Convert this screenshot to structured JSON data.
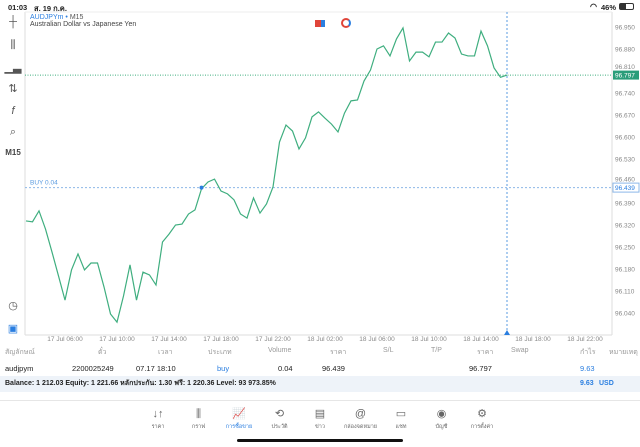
{
  "status_bar": {
    "time": "01:03",
    "date": "ส. 19 ก.ค.",
    "battery": "46%"
  },
  "chart": {
    "symbol": "AUDJPYm",
    "separator": "•",
    "timeframe": "M15",
    "description": "Australian Dollar vs Japanese Yen",
    "timeframe_label": "M15",
    "buy_label": "BUY 0.04",
    "current_price": "96.797",
    "buy_price": "96.439",
    "line_color": "#3fae7f",
    "accent": "#2a7ee0"
  },
  "chart_data": {
    "type": "line",
    "ylim": [
      96.0,
      96.99
    ],
    "y_ticks": [
      "96.950",
      "96.880",
      "96.810",
      "96.740",
      "96.670",
      "96.600",
      "96.530",
      "96.460",
      "96.390",
      "96.320",
      "96.250",
      "96.180",
      "96.110",
      "96.040"
    ],
    "x_ticks": [
      "17 Jul 06:00",
      "17 Jul 10:00",
      "17 Jul 14:00",
      "17 Jul 18:00",
      "17 Jul 22:00",
      "18 Jul 02:00",
      "18 Jul 06:00",
      "18 Jul 10:00",
      "18 Jul 14:00",
      "18 Jul 18:00",
      "18 Jul 22:00"
    ],
    "start": "17 Jul 03:00",
    "interval_minutes": 30,
    "values": [
      96.333,
      96.33,
      96.365,
      96.307,
      96.234,
      96.158,
      96.081,
      96.177,
      96.228,
      96.177,
      96.199,
      96.199,
      96.123,
      96.037,
      96.011,
      96.094,
      96.193,
      96.081,
      96.17,
      96.161,
      96.129,
      96.266,
      96.291,
      96.32,
      96.323,
      96.355,
      96.368,
      96.435,
      96.457,
      96.466,
      96.428,
      96.419,
      96.4,
      96.355,
      96.342,
      96.406,
      96.358,
      96.387,
      96.441,
      96.584,
      96.638,
      96.619,
      96.562,
      96.597,
      96.664,
      96.68,
      96.66,
      96.641,
      96.616,
      96.676,
      96.715,
      96.718,
      96.778,
      96.813,
      96.88,
      96.89,
      96.858,
      96.912,
      96.947,
      96.842,
      96.87,
      96.87,
      96.855,
      96.902,
      96.902,
      96.931,
      96.915,
      96.864,
      96.858,
      96.858,
      96.937,
      96.89,
      96.82,
      96.79,
      96.797
    ],
    "buy_marker": {
      "time": "17 Jul 16:30",
      "price": 96.439
    }
  },
  "table": {
    "headers": [
      "สัญลักษณ์",
      "ตั๋ว",
      "เวลา",
      "ประเภท",
      "Volume",
      "ราคา",
      "S/L",
      "T/P",
      "ราคา",
      "Swap",
      "กำไร",
      "หมายเหตุ"
    ],
    "rows": [
      {
        "symbol": "audjpym",
        "ticket": "2200025249",
        "time": "07.17 18:10",
        "type": "buy",
        "volume": "0.04",
        "open_price": "96.439",
        "sl": "",
        "tp": "",
        "price": "96.797",
        "swap": "",
        "profit": "9.63",
        "comment": ""
      }
    ]
  },
  "balance": {
    "text": "Balance: 1 212.03 Equity: 1 221.66 หลักประกัน: 1.30 ฟรี: 1 220.36 Level: 93 973.85%",
    "profit": "9.63",
    "currency": "USD"
  },
  "nav": [
    {
      "label": "ราคา",
      "icon": "↓↑"
    },
    {
      "label": "กราฟ",
      "icon": "⫼"
    },
    {
      "label": "การซื้อขาย",
      "icon": "📈"
    },
    {
      "label": "ประวัติ",
      "icon": "⟲"
    },
    {
      "label": "ข่าว",
      "icon": "▤"
    },
    {
      "label": "กล่องจดหมาย",
      "icon": "@"
    },
    {
      "label": "แชท",
      "icon": "▭"
    },
    {
      "label": "บัญชี",
      "icon": "◉"
    },
    {
      "label": "การตั้งค่า",
      "icon": "⚙"
    }
  ]
}
